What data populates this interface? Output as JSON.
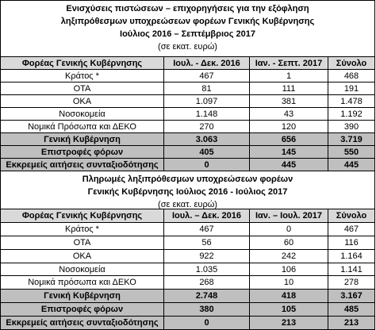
{
  "table1": {
    "title": [
      "Ενισχύσεις πιστώσεων – επιχορηγήσεις για την εξόφληση",
      "ληξιπρόθεσμων υποχρεώσεων φορέων Γενικής Κυβέρνησης",
      "Ιούλιος 2016 – Σεπτέμβριος 2017",
      "(σε εκατ. ευρώ)"
    ],
    "header": [
      "Φορέας Γενικής Κυβέρνησης",
      "Ιουλ. - Δεκ. 2016",
      "Ιαν. - Σεπτ. 2017",
      "Σύνολο"
    ],
    "rows": [
      [
        "Κράτος *",
        "467",
        "1",
        "468"
      ],
      [
        "ΟΤΑ",
        "81",
        "111",
        "191"
      ],
      [
        "ΟΚΑ",
        "1.097",
        "381",
        "1.478"
      ],
      [
        "Νοσοκομεία",
        "1.148",
        "43",
        "1.192"
      ],
      [
        "Νομικά Πρόσωπα και ΔΕΚΟ",
        "270",
        "120",
        "390"
      ]
    ],
    "totals": [
      [
        "Γενική Κυβέρνηση",
        "3.063",
        "656",
        "3.719"
      ],
      [
        "Επιστροφές φόρων",
        "405",
        "145",
        "550"
      ],
      [
        "Εκκρεμείς αιτήσεις συνταξιοδότησης",
        "0",
        "445",
        "445"
      ]
    ]
  },
  "table2": {
    "title": [
      "Πληρωμές ληξιπρόθεσμων υποχρεώσεων φορέων",
      "Γενικής Κυβέρνησης Ιούλιος 2016 - Ιούλιος 2017",
      "(σε εκατ. ευρώ)"
    ],
    "header": [
      "Φορέας Γενικής Κυβέρνησης",
      "Ιουλ. – Δεκ. 2016",
      "Ιαν. – Ιουλ. 2017",
      "Σύνολο"
    ],
    "rows": [
      [
        "Κράτος *",
        "467",
        "0",
        "467"
      ],
      [
        "ΟΤΑ",
        "56",
        "60",
        "116"
      ],
      [
        "ΟΚΑ",
        "922",
        "242",
        "1.164"
      ],
      [
        "Νοσοκομεία",
        "1.035",
        "106",
        "1.141"
      ],
      [
        "Νομικά πρόσωπα και ΔΕΚΟ",
        "268",
        "10",
        "278"
      ]
    ],
    "totals": [
      [
        "Γενική Κυβέρνηση",
        "2.748",
        "418",
        "3.167"
      ],
      [
        "Επιστροφές φόρων",
        "380",
        "105",
        "485"
      ],
      [
        "Εκκρεμείς αιτήσεις συνταξιοδότησης",
        "0",
        "213",
        "213"
      ]
    ]
  }
}
